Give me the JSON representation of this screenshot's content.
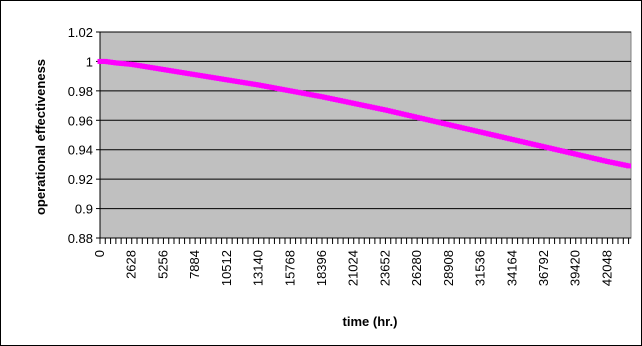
{
  "chart_data": {
    "type": "line",
    "xlabel": "time (hr.)",
    "ylabel": "operational effectiveness",
    "ylim": [
      0.88,
      1.02
    ],
    "xlim": [
      0,
      44000
    ],
    "y_ticks": [
      0.88,
      0.9,
      0.92,
      0.94,
      0.96,
      0.98,
      1,
      1.02
    ],
    "y_tick_labels": [
      "0.88",
      "0.9",
      "0.92",
      "0.94",
      "0.96",
      "0.98",
      "1",
      "1.02"
    ],
    "x_tick_labels": [
      "0",
      "2628",
      "5256",
      "7884",
      "10512",
      "13140",
      "15768",
      "18396",
      "21024",
      "23652",
      "26280",
      "28908",
      "31536",
      "34164",
      "36792",
      "39420",
      "42048"
    ],
    "x_label_step_hr": 2628,
    "x_minor_tick_step_hr": 438,
    "grid": "horizontal",
    "plot_background": "#c0c0c0",
    "series_color": "#ff00ff",
    "series": [
      {
        "x": [
          0,
          438,
          876,
          1314,
          2628,
          5256,
          7884,
          10512,
          13140,
          15768,
          18396,
          21024,
          23652,
          26280,
          28908,
          31536,
          34164,
          36792,
          39420,
          42048,
          43800
        ],
        "y": [
          1.0,
          1.0,
          0.9995,
          0.999,
          0.998,
          0.9945,
          0.991,
          0.9875,
          0.984,
          0.98,
          0.976,
          0.9715,
          0.967,
          0.962,
          0.957,
          0.952,
          0.947,
          0.942,
          0.937,
          0.932,
          0.929
        ]
      }
    ]
  }
}
